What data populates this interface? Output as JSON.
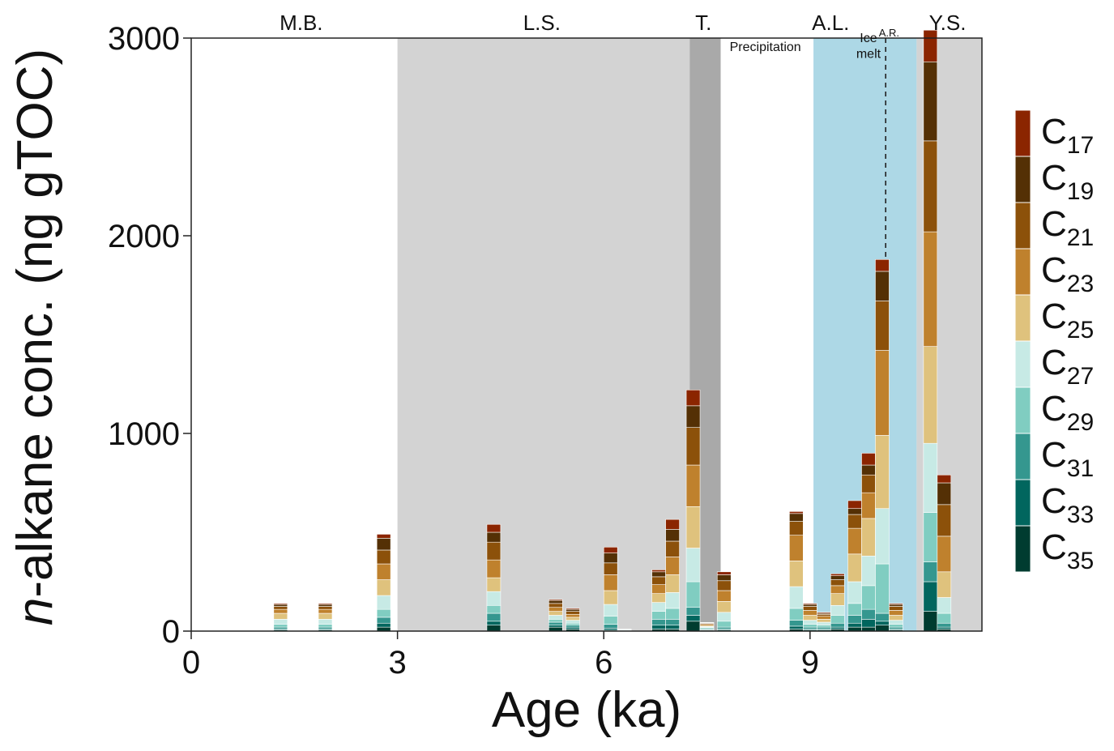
{
  "chart_data": {
    "type": "bar",
    "stacked": true,
    "title": "",
    "xlabel": "Age (ka)",
    "ylabel_italic": "n",
    "ylabel_rest": "-alkane conc. (ng gTOC)",
    "xlim": [
      0,
      11.5
    ],
    "ylim": [
      0,
      3000
    ],
    "x_ticks": [
      0,
      3,
      6,
      9
    ],
    "y_ticks": [
      0,
      1000,
      2000,
      3000
    ],
    "bar_width_ka": 0.2,
    "periods": [
      {
        "label": "M.B.",
        "label_x": 1.6,
        "start": 0,
        "end": 3.0,
        "color": "#ffffff"
      },
      {
        "label": "L.S.",
        "label_x": 5.1,
        "start": 3.0,
        "end": 7.25,
        "color": "#d3d3d3"
      },
      {
        "label": "T.",
        "label_x": 7.45,
        "start": 7.25,
        "end": 7.7,
        "color": "#a9a9a9"
      },
      {
        "label": "A.L.",
        "label_x": 9.3,
        "start": 9.05,
        "end": 10.55,
        "color": "#add8e6"
      },
      {
        "label": "Y.S.",
        "label_x": 11.0,
        "start": 10.55,
        "end": 11.5,
        "color": "#d3d3d3"
      }
    ],
    "annotations": [
      {
        "text": "Precipitation",
        "x": 8.35,
        "y": 2935
      },
      {
        "text": "Ice",
        "x": 9.85,
        "y": 2980
      },
      {
        "text": "melt",
        "x": 9.85,
        "y": 2900
      },
      {
        "text": "A.R.",
        "x": 10.15,
        "y": 3040
      }
    ],
    "reference_line": {
      "label": "A.R.",
      "x": 10.1,
      "style": "dashed"
    },
    "series": [
      {
        "name": "C17",
        "sub": "17",
        "color": "#8b2500"
      },
      {
        "name": "C19",
        "sub": "19",
        "color": "#543005"
      },
      {
        "name": "C21",
        "sub": "21",
        "color": "#8c510a"
      },
      {
        "name": "C23",
        "sub": "23",
        "color": "#bf812d"
      },
      {
        "name": "C25",
        "sub": "25",
        "color": "#dfc27d"
      },
      {
        "name": "C27",
        "sub": "27",
        "color": "#c7eae5"
      },
      {
        "name": "C29",
        "sub": "29",
        "color": "#80cdc1"
      },
      {
        "name": "C31",
        "sub": "31",
        "color": "#35978f"
      },
      {
        "name": "C33",
        "sub": "33",
        "color": "#01665e"
      },
      {
        "name": "C35",
        "sub": "35",
        "color": "#003c30"
      }
    ],
    "stack_order_bottom_to_top": [
      "C35",
      "C33",
      "C31",
      "C29",
      "C27",
      "C25",
      "C23",
      "C21",
      "C19",
      "C17"
    ],
    "bars": [
      {
        "age": 1.3,
        "values": [
          5,
          5,
          10,
          15,
          25,
          30,
          20,
          15,
          10,
          5
        ]
      },
      {
        "age": 1.95,
        "values": [
          5,
          5,
          10,
          15,
          25,
          30,
          20,
          15,
          10,
          5
        ]
      },
      {
        "age": 2.8,
        "values": [
          20,
          20,
          30,
          40,
          70,
          80,
          80,
          70,
          60,
          20
        ]
      },
      {
        "age": 4.4,
        "values": [
          30,
          20,
          40,
          40,
          70,
          70,
          90,
          90,
          50,
          40
        ]
      },
      {
        "age": 5.3,
        "values": [
          20,
          10,
          15,
          15,
          20,
          20,
          20,
          20,
          15,
          5
        ]
      },
      {
        "age": 5.55,
        "values": [
          10,
          10,
          10,
          10,
          15,
          15,
          15,
          15,
          10,
          5
        ]
      },
      {
        "age": 6.1,
        "values": [
          5,
          10,
          20,
          40,
          60,
          70,
          80,
          60,
          50,
          30
        ]
      },
      {
        "age": 6.3,
        "values": [
          0,
          0,
          0,
          3,
          4,
          2,
          1,
          0,
          0,
          0
        ]
      },
      {
        "age": 6.8,
        "values": [
          10,
          20,
          30,
          40,
          45,
          45,
          45,
          40,
          25,
          10
        ]
      },
      {
        "age": 7.0,
        "values": [
          10,
          20,
          30,
          55,
          80,
          90,
          90,
          80,
          60,
          50
        ]
      },
      {
        "age": 7.3,
        "values": [
          50,
          30,
          40,
          130,
          170,
          210,
          210,
          190,
          110,
          80
        ]
      },
      {
        "age": 7.5,
        "values": [
          5,
          3,
          5,
          5,
          5,
          5,
          6,
          5,
          3,
          2
        ]
      },
      {
        "age": 7.75,
        "values": [
          5,
          5,
          10,
          30,
          45,
          55,
          55,
          50,
          30,
          15
        ]
      },
      {
        "age": 8.8,
        "values": [
          10,
          15,
          30,
          60,
          110,
          130,
          130,
          70,
          40,
          10
        ]
      },
      {
        "age": 9.0,
        "values": [
          5,
          5,
          10,
          15,
          20,
          25,
          25,
          20,
          10,
          5
        ]
      },
      {
        "age": 9.2,
        "values": [
          5,
          5,
          10,
          10,
          15,
          15,
          15,
          10,
          5,
          5
        ]
      },
      {
        "age": 9.4,
        "values": [
          10,
          10,
          20,
          40,
          50,
          60,
          40,
          30,
          20,
          10
        ]
      },
      {
        "age": 9.65,
        "values": [
          20,
          20,
          40,
          60,
          110,
          140,
          130,
          70,
          30,
          40
        ]
      },
      {
        "age": 9.85,
        "values": [
          20,
          40,
          50,
          120,
          150,
          190,
          130,
          90,
          50,
          60
        ]
      },
      {
        "age": 10.05,
        "values": [
          30,
          20,
          40,
          250,
          280,
          370,
          430,
          250,
          150,
          60
        ]
      },
      {
        "age": 10.25,
        "values": [
          5,
          5,
          10,
          15,
          20,
          25,
          25,
          20,
          10,
          5
        ]
      },
      {
        "age": 10.75,
        "values": [
          100,
          150,
          100,
          250,
          350,
          490,
          580,
          460,
          400,
          160
        ]
      },
      {
        "age": 10.95,
        "values": [
          10,
          10,
          20,
          50,
          80,
          130,
          180,
          160,
          110,
          40
        ]
      }
    ]
  }
}
